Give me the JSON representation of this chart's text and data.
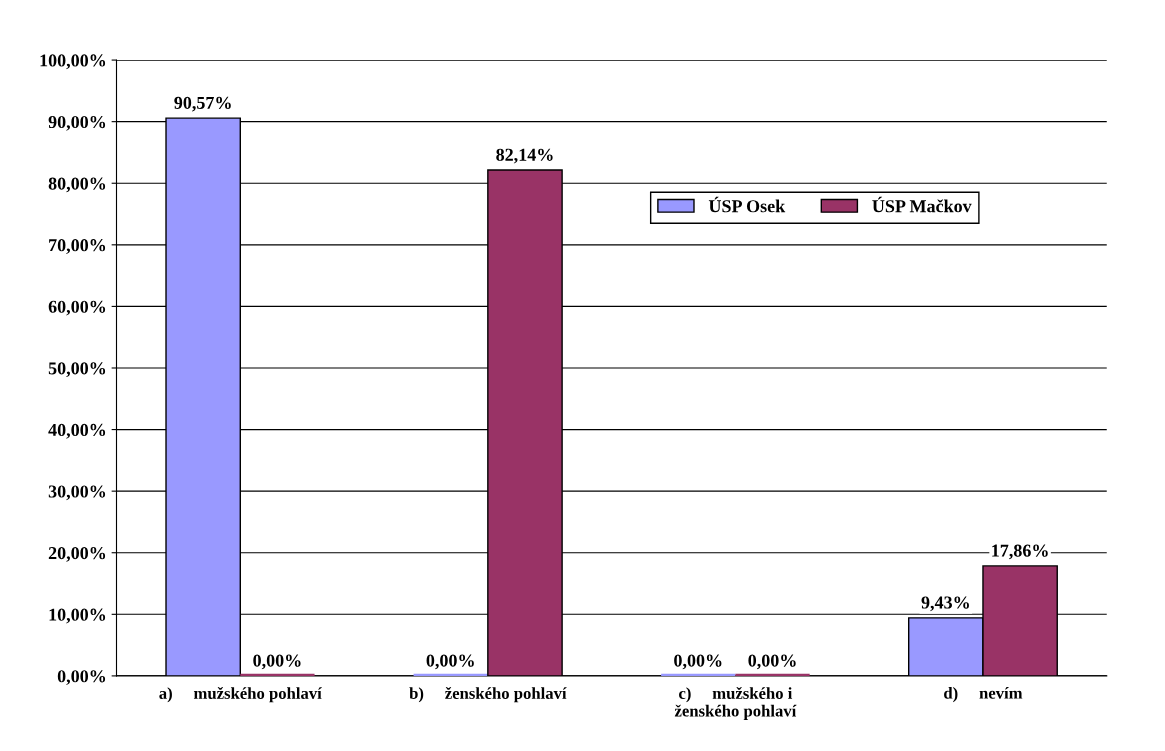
{
  "chart_data": {
    "type": "bar",
    "categories": [
      "a)     mužského pohlaví",
      "b)     ženského pohlaví",
      "c)     mužského i\nženského pohlaví",
      "d)     nevím"
    ],
    "series": [
      {
        "name": "ÚSP Osek",
        "color": "#9999ff",
        "values": [
          90.57,
          0,
          0,
          9.43
        ],
        "value_labels": [
          "90,57%",
          "0,00%",
          "0,00%",
          "9,43%"
        ]
      },
      {
        "name": "ÚSP Mačkov",
        "color": "#993366",
        "values": [
          0,
          82.14,
          0,
          17.86
        ],
        "value_labels": [
          "0,00%",
          "82,14%",
          "0,00%",
          "17,86%"
        ]
      }
    ],
    "ylim": [
      0,
      100
    ],
    "yticks": [
      {
        "value": 0,
        "label": "0,00%"
      },
      {
        "value": 10,
        "label": "10,00%"
      },
      {
        "value": 20,
        "label": "20,00%"
      },
      {
        "value": 30,
        "label": "30,00%"
      },
      {
        "value": 40,
        "label": "40,00%"
      },
      {
        "value": 50,
        "label": "50,00%"
      },
      {
        "value": 60,
        "label": "60,00%"
      },
      {
        "value": 70,
        "label": "70,00%"
      },
      {
        "value": 80,
        "label": "80,00%"
      },
      {
        "value": 90,
        "label": "90,00%"
      },
      {
        "value": 100,
        "label": "100,00%"
      }
    ],
    "grid": "y",
    "legend": "top right"
  }
}
